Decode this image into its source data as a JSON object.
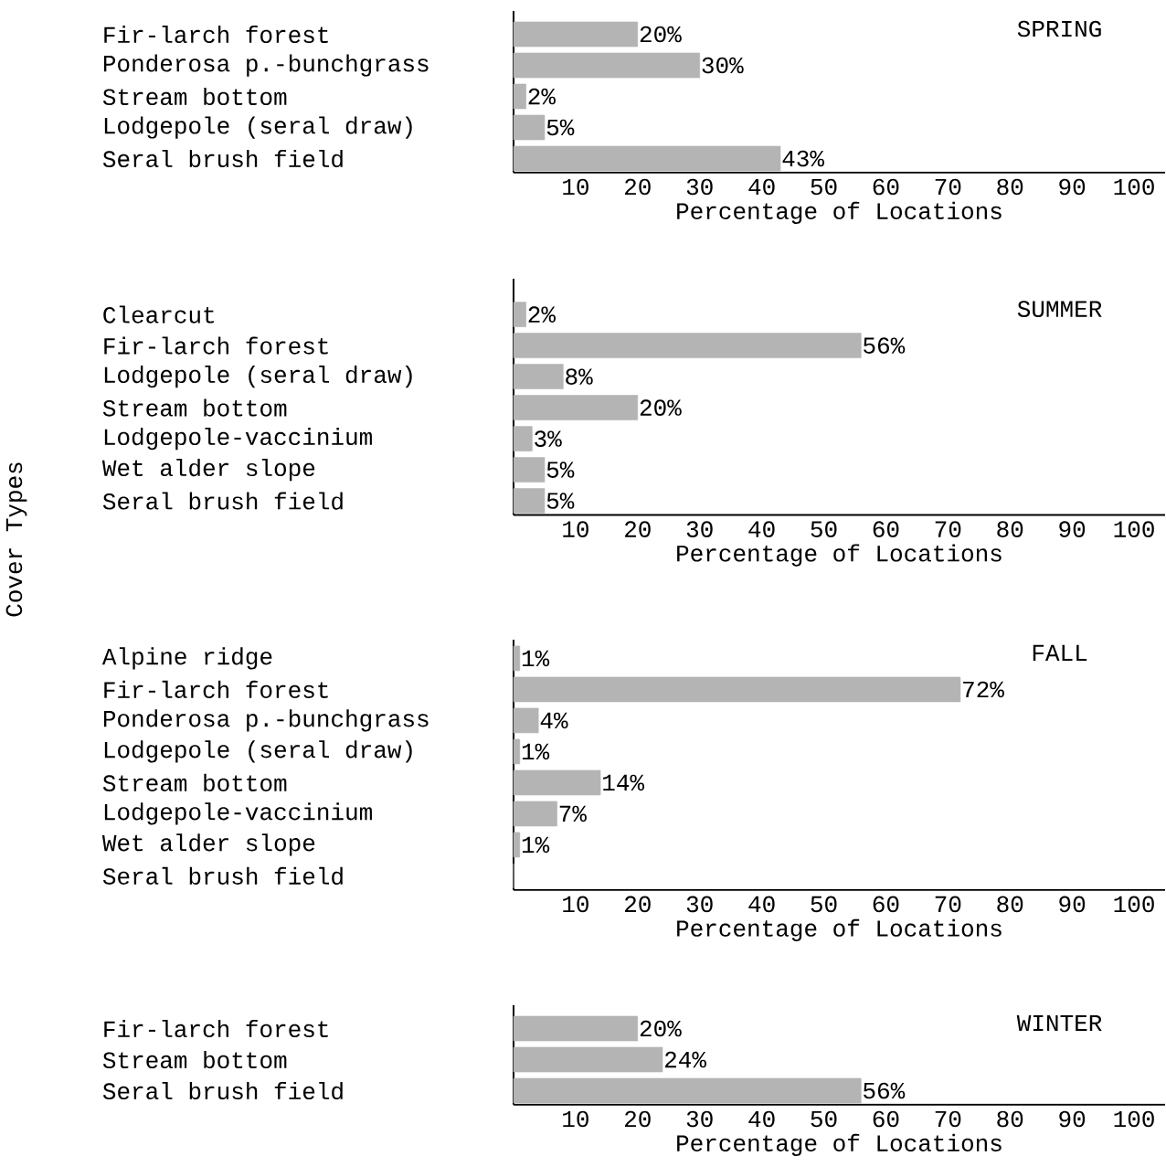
{
  "chart_data": [
    {
      "type": "bar",
      "orientation": "horizontal",
      "title": "SPRING",
      "xlabel": "Percentage of Locations",
      "categories": [
        "Fir-larch forest",
        "Ponderosa p.-bunchgrass",
        "Stream bottom",
        "Lodgepole (seral draw)",
        "Seral brush field"
      ],
      "values": [
        20,
        30,
        2,
        5,
        43
      ],
      "value_labels": [
        "20%",
        "30%",
        "2%",
        "5%",
        "43%"
      ],
      "color": "#b4b4b4",
      "xlim": [
        0,
        105
      ],
      "xticks": [
        10,
        20,
        30,
        40,
        50,
        60,
        70,
        80,
        90,
        100
      ],
      "grid": false
    },
    {
      "type": "bar",
      "orientation": "horizontal",
      "title": "SUMMER",
      "xlabel": "Percentage of Locations",
      "ylabel": "Cover Types",
      "categories": [
        "Clearcut",
        "Fir-larch forest",
        "Lodgepole (seral draw)",
        "Stream bottom",
        "Lodgepole-vaccinium",
        "Wet alder slope",
        "Seral brush field"
      ],
      "values": [
        2,
        56,
        8,
        20,
        3,
        5,
        5
      ],
      "value_labels": [
        "2%",
        "56%",
        "8%",
        "20%",
        "3%",
        "5%",
        "5%"
      ],
      "color": "#b4b4b4",
      "xlim": [
        0,
        105
      ],
      "xticks": [
        10,
        20,
        30,
        40,
        50,
        60,
        70,
        80,
        90,
        100
      ],
      "grid": false
    },
    {
      "type": "bar",
      "orientation": "horizontal",
      "title": "FALL",
      "xlabel": "Percentage of Locations",
      "categories": [
        "Alpine ridge",
        "Fir-larch forest",
        "Ponderosa p.-bunchgrass",
        "Lodgepole (seral draw)",
        "Stream bottom",
        "Lodgepole-vaccinium",
        "Wet alder slope",
        "Seral brush field"
      ],
      "values": [
        1,
        72,
        4,
        1,
        14,
        7,
        1,
        0
      ],
      "value_labels": [
        "1%",
        "72%",
        "4%",
        "1%",
        "14%",
        "7%",
        "1%",
        null
      ],
      "color": "#b4b4b4",
      "xlim": [
        0,
        105
      ],
      "xticks": [
        10,
        20,
        30,
        40,
        50,
        60,
        70,
        80,
        90,
        100
      ],
      "grid": false
    },
    {
      "type": "bar",
      "orientation": "horizontal",
      "title": "WINTER",
      "xlabel": "Percentage of Locations",
      "categories": [
        "Fir-larch forest",
        "Stream bottom",
        "Seral brush field"
      ],
      "values": [
        20,
        24,
        56
      ],
      "value_labels": [
        "20%",
        "24%",
        "56%"
      ],
      "color": "#b4b4b4",
      "xlim": [
        0,
        105
      ],
      "xticks": [
        10,
        20,
        30,
        40,
        50,
        60,
        70,
        80,
        90,
        100
      ],
      "grid": false
    }
  ]
}
